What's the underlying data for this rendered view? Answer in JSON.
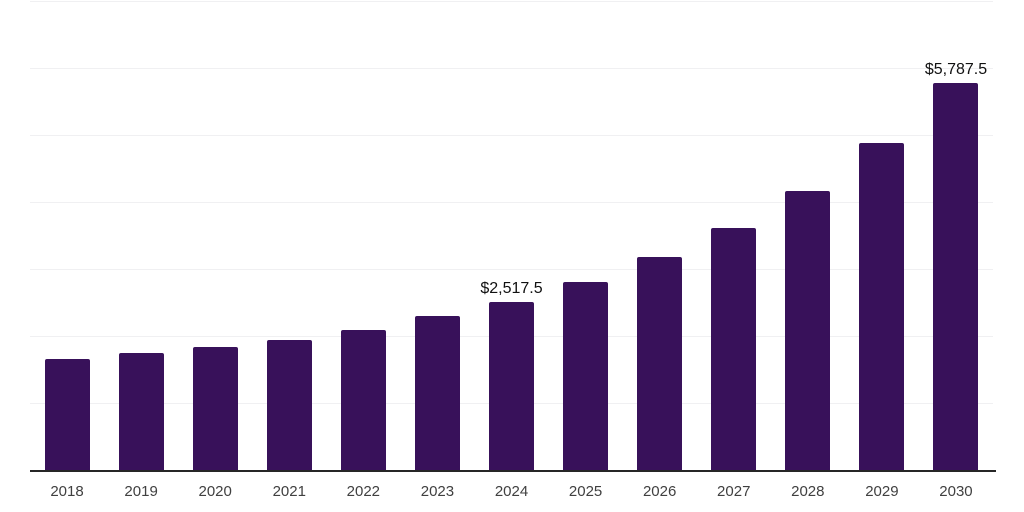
{
  "chart": {
    "background_color": "#ffffff",
    "bar_color": "#38115A",
    "gridline_color": "#f0f0f2",
    "axis_color": "#262626",
    "tick_label_color": "#404040",
    "data_label_color": "#111111"
  },
  "chart_data": {
    "type": "bar",
    "title": "",
    "xlabel": "",
    "ylabel": "",
    "categories": [
      "2018",
      "2019",
      "2020",
      "2021",
      "2022",
      "2023",
      "2024",
      "2025",
      "2026",
      "2027",
      "2028",
      "2029",
      "2030"
    ],
    "values": [
      1665,
      1765,
      1855,
      1955,
      2105,
      2310,
      2517.5,
      2825,
      3190,
      3630,
      4185,
      4900,
      5787.5
    ],
    "labeled_points": [
      {
        "category": "2024",
        "label": "$2,517.5"
      },
      {
        "category": "2030",
        "label": "$5,787.5"
      }
    ],
    "ylim": [
      0,
      7000
    ],
    "gridline_step": 1000,
    "grid": true,
    "legend": false,
    "y_tick_labels_visible": false
  }
}
